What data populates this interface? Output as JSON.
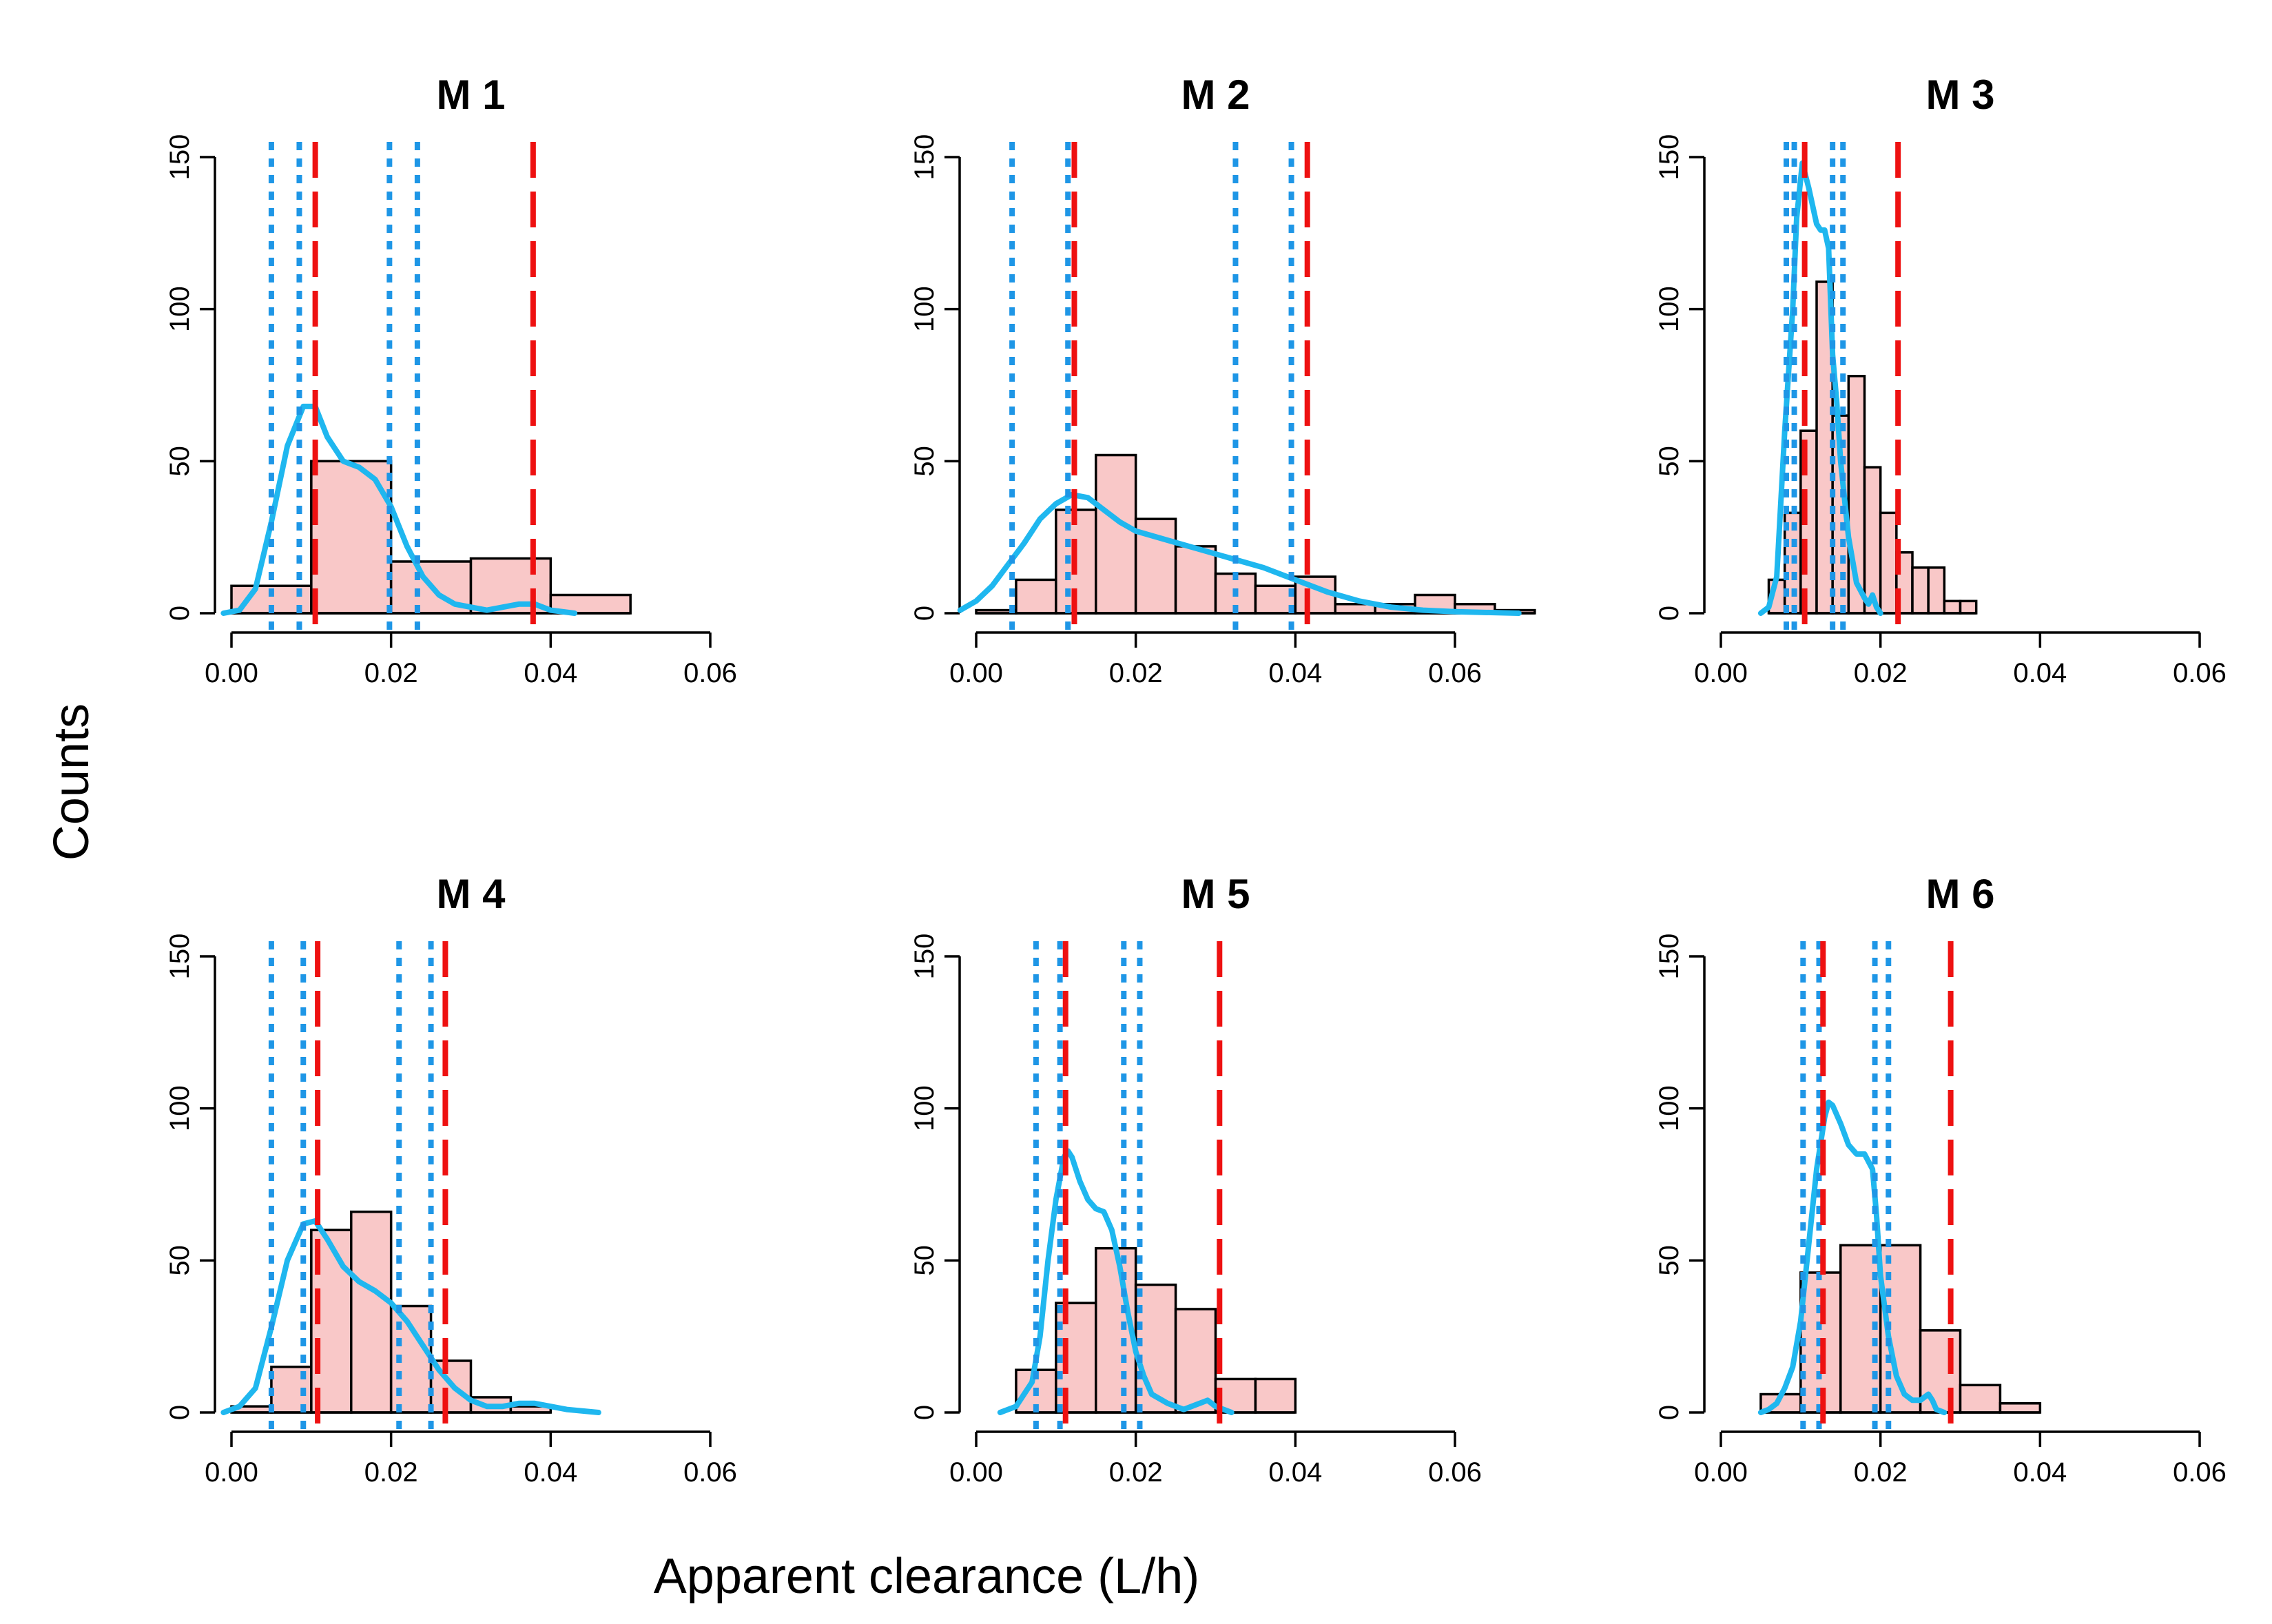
{
  "figure": {
    "ylabel": "Counts",
    "xlabel": "Apparent clearance (L/h)"
  },
  "colors": {
    "bar_fill": "#f9c8c8",
    "density": "#1fb7ef",
    "red_lines": "#ee1111",
    "blue_lines": "#1e96e6"
  },
  "chart_data": [
    {
      "type": "bar",
      "title": "M 1",
      "xlim": [
        0,
        0.06
      ],
      "ylim": [
        0,
        150
      ],
      "xticks": [
        "0.00",
        "0.02",
        "0.04",
        "0.06"
      ],
      "yticks": [
        "0",
        "50",
        "100",
        "150"
      ],
      "bin_edges": [
        0.0,
        0.01,
        0.02,
        0.03,
        0.04,
        0.05
      ],
      "counts": [
        9,
        50,
        17,
        18,
        6
      ],
      "red_lines": [
        0.0105,
        0.0378
      ],
      "blue_lines": [
        0.005,
        0.0085,
        0.0198,
        0.0233
      ],
      "density": [
        [
          -0.001,
          0
        ],
        [
          0.001,
          1
        ],
        [
          0.003,
          8
        ],
        [
          0.005,
          30
        ],
        [
          0.007,
          55
        ],
        [
          0.009,
          68
        ],
        [
          0.0105,
          68
        ],
        [
          0.012,
          58
        ],
        [
          0.014,
          50
        ],
        [
          0.016,
          48
        ],
        [
          0.018,
          44
        ],
        [
          0.02,
          35
        ],
        [
          0.022,
          22
        ],
        [
          0.024,
          12
        ],
        [
          0.026,
          6
        ],
        [
          0.028,
          3
        ],
        [
          0.03,
          2
        ],
        [
          0.032,
          1
        ],
        [
          0.034,
          2
        ],
        [
          0.036,
          3
        ],
        [
          0.038,
          3
        ],
        [
          0.04,
          1
        ],
        [
          0.043,
          0
        ]
      ]
    },
    {
      "type": "bar",
      "title": "M 2",
      "xlim": [
        0,
        0.06
      ],
      "ylim": [
        0,
        150
      ],
      "xticks": [
        "0.00",
        "0.02",
        "0.04",
        "0.06"
      ],
      "yticks": [
        "0",
        "50",
        "100",
        "150"
      ],
      "bin_edges": [
        0.0,
        0.005,
        0.01,
        0.015,
        0.02,
        0.025,
        0.03,
        0.035,
        0.04,
        0.045,
        0.05,
        0.055,
        0.06,
        0.065,
        0.07
      ],
      "counts": [
        1,
        11,
        34,
        52,
        31,
        22,
        13,
        9,
        12,
        3,
        3,
        6,
        3,
        1
      ],
      "red_lines": [
        0.0123,
        0.0415
      ],
      "blue_lines": [
        0.0045,
        0.0115,
        0.0325,
        0.0395
      ],
      "density": [
        [
          -0.002,
          1
        ],
        [
          0.0,
          4
        ],
        [
          0.002,
          9
        ],
        [
          0.004,
          16
        ],
        [
          0.006,
          23
        ],
        [
          0.008,
          31
        ],
        [
          0.01,
          36
        ],
        [
          0.012,
          39
        ],
        [
          0.014,
          38
        ],
        [
          0.016,
          34
        ],
        [
          0.018,
          30
        ],
        [
          0.02,
          27
        ],
        [
          0.024,
          24
        ],
        [
          0.028,
          21
        ],
        [
          0.032,
          18
        ],
        [
          0.036,
          15
        ],
        [
          0.04,
          11
        ],
        [
          0.044,
          7
        ],
        [
          0.048,
          4
        ],
        [
          0.052,
          2
        ],
        [
          0.056,
          1
        ],
        [
          0.06,
          0.5
        ],
        [
          0.068,
          0
        ]
      ]
    },
    {
      "type": "bar",
      "title": "M 3",
      "xlim": [
        0,
        0.06
      ],
      "ylim": [
        0,
        150
      ],
      "xticks": [
        "0.00",
        "0.02",
        "0.04",
        "0.06"
      ],
      "yticks": [
        "0",
        "50",
        "100",
        "150"
      ],
      "bin_edges": [
        0.006,
        0.008,
        0.01,
        0.012,
        0.014,
        0.016,
        0.018,
        0.02,
        0.022,
        0.024,
        0.026,
        0.028,
        0.03,
        0.032
      ],
      "counts": [
        11,
        33,
        60,
        109,
        65,
        78,
        48,
        33,
        20,
        15,
        15,
        4,
        4
      ],
      "red_lines": [
        0.0105,
        0.0222
      ],
      "blue_lines": [
        0.0082,
        0.0092,
        0.014,
        0.0153
      ],
      "density": [
        [
          0.005,
          0
        ],
        [
          0.006,
          2
        ],
        [
          0.007,
          12
        ],
        [
          0.008,
          60
        ],
        [
          0.0085,
          80
        ],
        [
          0.009,
          100
        ],
        [
          0.0095,
          130
        ],
        [
          0.0102,
          148
        ],
        [
          0.011,
          140
        ],
        [
          0.012,
          128
        ],
        [
          0.0125,
          126
        ],
        [
          0.013,
          126
        ],
        [
          0.0135,
          120
        ],
        [
          0.014,
          85
        ],
        [
          0.0145,
          70
        ],
        [
          0.015,
          50
        ],
        [
          0.016,
          25
        ],
        [
          0.017,
          10
        ],
        [
          0.018,
          5
        ],
        [
          0.0185,
          3
        ],
        [
          0.019,
          6
        ],
        [
          0.0195,
          2
        ],
        [
          0.02,
          0
        ]
      ]
    },
    {
      "type": "bar",
      "title": "M 4",
      "xlim": [
        0,
        0.06
      ],
      "ylim": [
        0,
        150
      ],
      "xticks": [
        "0.00",
        "0.02",
        "0.04",
        "0.06"
      ],
      "yticks": [
        "0",
        "50",
        "100",
        "150"
      ],
      "bin_edges": [
        0.0,
        0.005,
        0.01,
        0.015,
        0.02,
        0.025,
        0.03,
        0.035,
        0.04
      ],
      "counts": [
        2,
        15,
        60,
        66,
        35,
        17,
        5,
        2
      ],
      "red_lines": [
        0.0108,
        0.0268
      ],
      "blue_lines": [
        0.005,
        0.009,
        0.021,
        0.025
      ],
      "density": [
        [
          -0.001,
          0
        ],
        [
          0.001,
          2
        ],
        [
          0.003,
          8
        ],
        [
          0.005,
          28
        ],
        [
          0.007,
          50
        ],
        [
          0.009,
          62
        ],
        [
          0.0105,
          63
        ],
        [
          0.012,
          57
        ],
        [
          0.014,
          48
        ],
        [
          0.016,
          43
        ],
        [
          0.018,
          40
        ],
        [
          0.02,
          36
        ],
        [
          0.022,
          30
        ],
        [
          0.024,
          22
        ],
        [
          0.026,
          14
        ],
        [
          0.028,
          8
        ],
        [
          0.03,
          4
        ],
        [
          0.032,
          2
        ],
        [
          0.034,
          2
        ],
        [
          0.036,
          3
        ],
        [
          0.038,
          3
        ],
        [
          0.04,
          2
        ],
        [
          0.042,
          1
        ],
        [
          0.046,
          0
        ]
      ]
    },
    {
      "type": "bar",
      "title": "M 5",
      "xlim": [
        0,
        0.06
      ],
      "ylim": [
        0,
        150
      ],
      "xticks": [
        "0.00",
        "0.02",
        "0.04",
        "0.06"
      ],
      "yticks": [
        "0",
        "50",
        "100",
        "150"
      ],
      "bin_edges": [
        0.005,
        0.01,
        0.015,
        0.02,
        0.025,
        0.03,
        0.035,
        0.04
      ],
      "counts": [
        14,
        36,
        54,
        42,
        34,
        11,
        11
      ],
      "red_lines": [
        0.0112,
        0.0305
      ],
      "blue_lines": [
        0.0075,
        0.0105,
        0.0185,
        0.0205
      ],
      "density": [
        [
          0.003,
          0
        ],
        [
          0.005,
          2
        ],
        [
          0.007,
          10
        ],
        [
          0.008,
          25
        ],
        [
          0.009,
          50
        ],
        [
          0.01,
          70
        ],
        [
          0.011,
          84
        ],
        [
          0.0115,
          86
        ],
        [
          0.012,
          84
        ],
        [
          0.013,
          76
        ],
        [
          0.014,
          70
        ],
        [
          0.015,
          67
        ],
        [
          0.016,
          66
        ],
        [
          0.017,
          60
        ],
        [
          0.018,
          48
        ],
        [
          0.019,
          33
        ],
        [
          0.02,
          20
        ],
        [
          0.021,
          12
        ],
        [
          0.022,
          6
        ],
        [
          0.024,
          3
        ],
        [
          0.026,
          1
        ],
        [
          0.028,
          3
        ],
        [
          0.029,
          4
        ],
        [
          0.03,
          2
        ],
        [
          0.032,
          0
        ]
      ]
    },
    {
      "type": "bar",
      "title": "M 6",
      "xlim": [
        0,
        0.06
      ],
      "ylim": [
        0,
        150
      ],
      "xticks": [
        "0.00",
        "0.02",
        "0.04",
        "0.06"
      ],
      "yticks": [
        "0",
        "50",
        "100",
        "150"
      ],
      "bin_edges": [
        0.005,
        0.01,
        0.015,
        0.02,
        0.025,
        0.03,
        0.035,
        0.04
      ],
      "counts": [
        6,
        46,
        55,
        55,
        27,
        9,
        3
      ],
      "red_lines": [
        0.0128,
        0.0288
      ],
      "blue_lines": [
        0.0103,
        0.0123,
        0.0193,
        0.021
      ],
      "density": [
        [
          0.005,
          0
        ],
        [
          0.006,
          1
        ],
        [
          0.007,
          3
        ],
        [
          0.008,
          8
        ],
        [
          0.009,
          15
        ],
        [
          0.01,
          30
        ],
        [
          0.011,
          55
        ],
        [
          0.012,
          80
        ],
        [
          0.013,
          97
        ],
        [
          0.0135,
          102
        ],
        [
          0.014,
          101
        ],
        [
          0.015,
          95
        ],
        [
          0.016,
          88
        ],
        [
          0.017,
          85
        ],
        [
          0.018,
          85
        ],
        [
          0.019,
          80
        ],
        [
          0.0195,
          65
        ],
        [
          0.02,
          45
        ],
        [
          0.021,
          25
        ],
        [
          0.022,
          12
        ],
        [
          0.023,
          6
        ],
        [
          0.024,
          4
        ],
        [
          0.025,
          4
        ],
        [
          0.026,
          6
        ],
        [
          0.0265,
          4
        ],
        [
          0.027,
          1
        ],
        [
          0.028,
          0
        ]
      ]
    }
  ]
}
